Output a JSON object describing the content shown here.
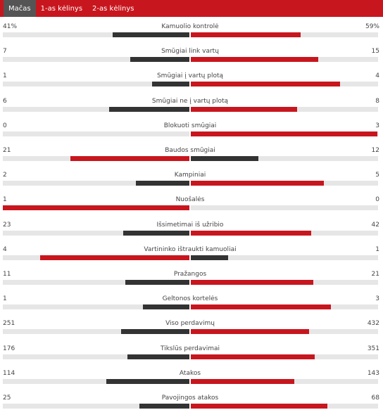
{
  "tabs": [
    {
      "label": "Mačas",
      "active": true
    },
    {
      "label": "1-as kėlinys",
      "active": false
    },
    {
      "label": "2-as kėlinys",
      "active": false
    }
  ],
  "colors": {
    "win": "#c8161e",
    "lose": "#333333",
    "track": "#e6e6e6",
    "tab_bar": "#c8161e"
  },
  "stats": [
    {
      "label": "Kamuolio kontrolė",
      "home": "41%",
      "away": "59%",
      "home_value": 41,
      "away_value": 59
    },
    {
      "label": "Smūgiai link vartų",
      "home": "7",
      "away": "15",
      "home_value": 7,
      "away_value": 15
    },
    {
      "label": "Smūgiai į vartų plotą",
      "home": "1",
      "away": "4",
      "home_value": 1,
      "away_value": 4
    },
    {
      "label": "Smūgiai ne į vartų plotą",
      "home": "6",
      "away": "8",
      "home_value": 6,
      "away_value": 8
    },
    {
      "label": "Blokuoti smūgiai",
      "home": "0",
      "away": "3",
      "home_value": 0,
      "away_value": 3
    },
    {
      "label": "Baudos smūgiai",
      "home": "21",
      "away": "12",
      "home_value": 21,
      "away_value": 12
    },
    {
      "label": "Kampiniai",
      "home": "2",
      "away": "5",
      "home_value": 2,
      "away_value": 5
    },
    {
      "label": "Nuošalės",
      "home": "1",
      "away": "0",
      "home_value": 1,
      "away_value": 0
    },
    {
      "label": "Išsimetimai iš užribio",
      "home": "23",
      "away": "42",
      "home_value": 23,
      "away_value": 42
    },
    {
      "label": "Vartininko ištraukti kamuoliai",
      "home": "4",
      "away": "1",
      "home_value": 4,
      "away_value": 1
    },
    {
      "label": "Pražangos",
      "home": "11",
      "away": "21",
      "home_value": 11,
      "away_value": 21
    },
    {
      "label": "Geltonos kortelės",
      "home": "1",
      "away": "3",
      "home_value": 1,
      "away_value": 3
    },
    {
      "label": "Viso perdavimų",
      "home": "251",
      "away": "432",
      "home_value": 251,
      "away_value": 432
    },
    {
      "label": "Tikslūs perdavimai",
      "home": "176",
      "away": "351",
      "home_value": 176,
      "away_value": 351
    },
    {
      "label": "Atakos",
      "home": "114",
      "away": "143",
      "home_value": 114,
      "away_value": 143
    },
    {
      "label": "Pavojingos atakos",
      "home": "25",
      "away": "68",
      "home_value": 25,
      "away_value": 68
    }
  ]
}
